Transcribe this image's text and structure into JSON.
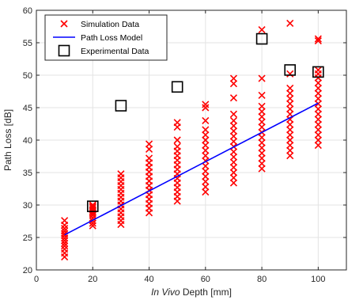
{
  "chart_data": {
    "type": "scatter",
    "title": "",
    "xlabel_italic": "In Vivo",
    "xlabel_rest": " Depth [mm]",
    "ylabel": "Path Loss [dB]",
    "xlim": [
      0,
      110
    ],
    "ylim": [
      20,
      60
    ],
    "xticks": [
      0,
      20,
      40,
      60,
      80,
      100
    ],
    "yticks": [
      20,
      25,
      30,
      35,
      40,
      45,
      50,
      55,
      60
    ],
    "grid": true,
    "legend_position": "top-left",
    "series": [
      {
        "name": "Simulation Data",
        "kind": "scatter",
        "marker": "x",
        "color": "#ff0000",
        "groups": [
          {
            "x": 10,
            "y": [
              22.0,
              22.6,
              23.2,
              23.7,
              24.1,
              24.5,
              24.9,
              25.3,
              25.6,
              26.0,
              26.4,
              26.9,
              27.6
            ]
          },
          {
            "x": 20,
            "y": [
              26.8,
              27.2,
              27.6,
              28.0,
              28.4,
              28.7,
              29.0,
              29.3,
              29.6,
              29.8,
              30.0
            ]
          },
          {
            "x": 30,
            "y": [
              27.0,
              27.6,
              28.2,
              28.8,
              29.4,
              30.0,
              30.6,
              31.2,
              31.8,
              32.4,
              33.0,
              33.6,
              34.2,
              34.8
            ]
          },
          {
            "x": 40,
            "y": [
              28.8,
              29.5,
              30.2,
              30.9,
              31.6,
              32.3,
              33.0,
              33.7,
              34.4,
              35.1,
              35.8,
              36.5,
              37.2,
              38.6,
              39.4
            ]
          },
          {
            "x": 50,
            "y": [
              30.6,
              31.3,
              32.0,
              32.7,
              33.4,
              34.1,
              34.8,
              35.5,
              36.2,
              36.9,
              37.6,
              38.3,
              39.0,
              40.0,
              42.0,
              42.7
            ]
          },
          {
            "x": 60,
            "y": [
              32.0,
              32.8,
              33.6,
              34.4,
              35.2,
              36.0,
              36.8,
              37.6,
              38.4,
              39.2,
              40.0,
              40.8,
              41.6,
              43.0,
              45.0,
              45.5
            ]
          },
          {
            "x": 70,
            "y": [
              33.4,
              34.2,
              35.0,
              35.8,
              36.6,
              37.4,
              38.2,
              39.0,
              39.8,
              40.6,
              41.4,
              42.2,
              43.0,
              44.0,
              46.5,
              48.7,
              49.5
            ]
          },
          {
            "x": 80,
            "y": [
              35.6,
              36.4,
              37.2,
              38.0,
              38.8,
              39.6,
              40.4,
              41.2,
              42.0,
              42.8,
              43.6,
              44.4,
              45.2,
              46.9,
              49.5,
              57.0
            ]
          },
          {
            "x": 90,
            "y": [
              37.6,
              38.4,
              39.2,
              40.0,
              40.8,
              41.6,
              42.4,
              43.2,
              44.0,
              44.8,
              45.6,
              46.4,
              47.2,
              48.0,
              50.2,
              58.0
            ]
          },
          {
            "x": 100,
            "y": [
              39.2,
              40.0,
              40.8,
              41.6,
              42.4,
              43.2,
              44.0,
              44.8,
              45.6,
              46.4,
              47.2,
              48.0,
              48.8,
              49.6,
              50.2,
              50.8,
              55.3,
              55.6
            ]
          }
        ]
      },
      {
        "name": "Path Loss Model",
        "kind": "line",
        "color": "#0000ff",
        "x": [
          10,
          100
        ],
        "y": [
          25.4,
          45.7
        ]
      },
      {
        "name": "Experimental Data",
        "kind": "square",
        "color": "#000000",
        "x": [
          20,
          30,
          50,
          80,
          90,
          100
        ],
        "y": [
          29.8,
          45.3,
          48.2,
          55.6,
          50.8,
          50.5
        ]
      }
    ]
  }
}
